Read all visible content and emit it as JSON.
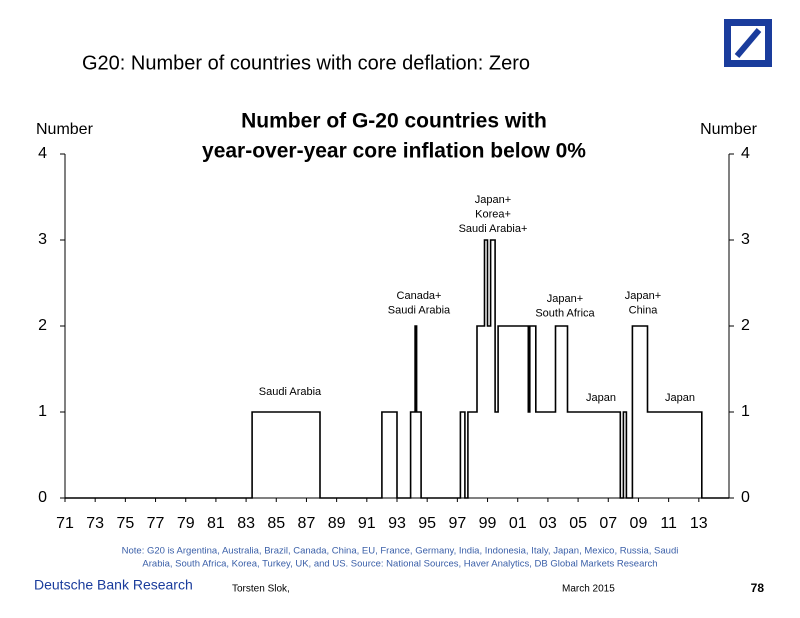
{
  "slide_title": "G20: Number of countries with core deflation: Zero",
  "chart_data": {
    "type": "line",
    "title": [
      "Number of G-20 countries with",
      "year-over-year core inflation below 0%"
    ],
    "ylabel": "Number",
    "y2label": "Number",
    "xlim": [
      1971,
      2015
    ],
    "xticks": [
      {
        "value": 1971,
        "label": "71"
      },
      {
        "value": 1973,
        "label": "73"
      },
      {
        "value": 1975,
        "label": "75"
      },
      {
        "value": 1977,
        "label": "77"
      },
      {
        "value": 1979,
        "label": "79"
      },
      {
        "value": 1981,
        "label": "81"
      },
      {
        "value": 1983,
        "label": "83"
      },
      {
        "value": 1985,
        "label": "85"
      },
      {
        "value": 1987,
        "label": "87"
      },
      {
        "value": 1989,
        "label": "89"
      },
      {
        "value": 1991,
        "label": "91"
      },
      {
        "value": 1993,
        "label": "93"
      },
      {
        "value": 1995,
        "label": "95"
      },
      {
        "value": 1997,
        "label": "97"
      },
      {
        "value": 1999,
        "label": "99"
      },
      {
        "value": 2001,
        "label": "01"
      },
      {
        "value": 2003,
        "label": "03"
      },
      {
        "value": 2005,
        "label": "05"
      },
      {
        "value": 2007,
        "label": "07"
      },
      {
        "value": 2009,
        "label": "09"
      },
      {
        "value": 2011,
        "label": "11"
      },
      {
        "value": 2013,
        "label": "13"
      }
    ],
    "ylim": [
      0,
      4
    ],
    "yticks": [
      0,
      1,
      2,
      3,
      4
    ],
    "y2lim": [
      0,
      4
    ],
    "y2ticks": [
      0,
      1,
      2,
      3,
      4
    ],
    "series": [
      {
        "color": "#000000",
        "x": [
          1971,
          1983.4,
          1983.4,
          1987.9,
          1987.9,
          1992.0,
          1992.0,
          1993.0,
          1993.0,
          1993.9,
          1993.9,
          1994.2,
          1994.2,
          1994.3,
          1994.3,
          1994.6,
          1994.6,
          1997.2,
          1997.2,
          1997.5,
          1997.5,
          1997.7,
          1997.7,
          1998.3,
          1998.3,
          1998.8,
          1998.8,
          1999.0,
          1999.0,
          1999.2,
          1999.2,
          1999.5,
          1999.5,
          1999.7,
          1999.7,
          2001.7,
          2001.7,
          2001.8,
          2001.8,
          2002.2,
          2002.2,
          2003.5,
          2003.5,
          2004.3,
          2004.3,
          2007.8,
          2007.8,
          2008.0,
          2008.0,
          2008.2,
          2008.2,
          2008.6,
          2008.6,
          2009.6,
          2009.6,
          2013.2,
          2013.2,
          2015
        ],
        "values": [
          0,
          0,
          1,
          1,
          0,
          0,
          1,
          1,
          0,
          0,
          1,
          1,
          2,
          2,
          1,
          1,
          0,
          0,
          1,
          1,
          0,
          0,
          1,
          1,
          2,
          2,
          3,
          3,
          2,
          2,
          3,
          3,
          1,
          1,
          2,
          2,
          1,
          1,
          2,
          2,
          1,
          1,
          2,
          2,
          1,
          1,
          0,
          0,
          1,
          1,
          0,
          0,
          2,
          2,
          1,
          1,
          0,
          0
        ]
      }
    ],
    "annotations": [
      {
        "text": [
          "Saudi Arabia"
        ]
      },
      {
        "text": [
          "Canada+",
          "Saudi Arabia"
        ]
      },
      {
        "text": [
          "Japan+",
          "Korea+",
          "Saudi Arabia+"
        ]
      },
      {
        "text": [
          "Japan+",
          "South Africa"
        ]
      },
      {
        "text": [
          "Japan"
        ]
      },
      {
        "text": [
          "Japan+",
          "China"
        ]
      },
      {
        "text": [
          "Japan"
        ]
      }
    ],
    "note": [
      "Note: G20 is Argentina, Australia, Brazil, Canada, China, EU, France, Germany, India, Indonesia, Italy, Japan, Mexico, Russia, Saudi",
      "Arabia, South Africa, Korea, Turkey, UK, and US. Source: National Sources, Haver Analytics, DB Global Markets Research"
    ]
  },
  "footer": {
    "org": "Deutsche Bank Research",
    "author": "Torsten Slok,",
    "date": "March 2015",
    "page": "78"
  }
}
